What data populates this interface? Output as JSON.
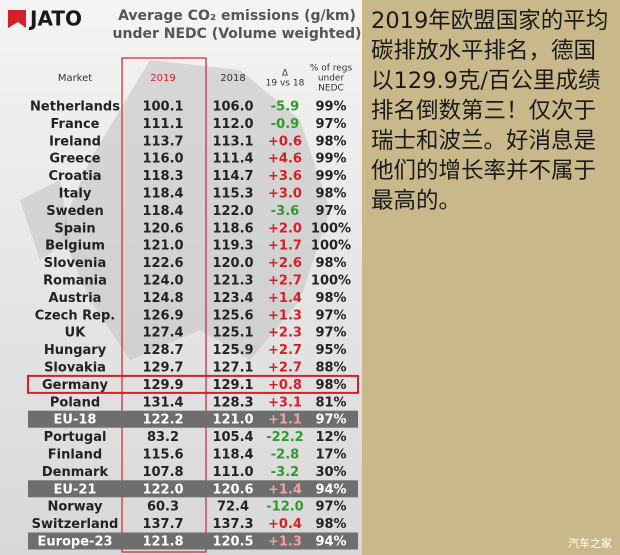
{
  "header": {
    "logo": "JATO",
    "title_lines": [
      "Average CO₂ emissions (g/km)",
      "under NEDC (Volume weighted)"
    ]
  },
  "table": {
    "columns": [
      [
        "Market"
      ],
      [
        "2019"
      ],
      [
        "2018"
      ],
      [
        "Δ",
        "19 vs 18"
      ],
      [
        "% of regs",
        "under",
        "NEDC"
      ]
    ],
    "rows": [
      [
        "Netherlands",
        "100.1",
        "106.0",
        "-5.9",
        "99%"
      ],
      [
        "France",
        "111.1",
        "112.0",
        "-0.9",
        "97%"
      ],
      [
        "Ireland",
        "113.7",
        "113.1",
        "+0.6",
        "98%"
      ],
      [
        "Greece",
        "116.0",
        "111.4",
        "+4.6",
        "99%"
      ],
      [
        "Croatia",
        "118.3",
        "114.7",
        "+3.6",
        "99%"
      ],
      [
        "Italy",
        "118.4",
        "115.3",
        "+3.0",
        "98%"
      ],
      [
        "Sweden",
        "118.4",
        "122.0",
        "-3.6",
        "97%"
      ],
      [
        "Spain",
        "120.6",
        "118.6",
        "+2.0",
        "100%"
      ],
      [
        "Belgium",
        "121.0",
        "119.3",
        "+1.7",
        "100%"
      ],
      [
        "Slovenia",
        "122.6",
        "120.0",
        "+2.6",
        "98%"
      ],
      [
        "Romania",
        "124.0",
        "121.3",
        "+2.7",
        "100%"
      ],
      [
        "Austria",
        "124.8",
        "123.4",
        "+1.4",
        "98%"
      ],
      [
        "Czech Rep.",
        "126.9",
        "125.6",
        "+1.3",
        "97%"
      ],
      [
        "UK",
        "127.4",
        "125.1",
        "+2.3",
        "97%"
      ],
      [
        "Hungary",
        "128.7",
        "125.9",
        "+2.7",
        "95%"
      ],
      [
        "Slovakia",
        "129.7",
        "127.1",
        "+2.7",
        "88%"
      ],
      [
        "Germany",
        "129.9",
        "129.1",
        "+0.8",
        "98%"
      ],
      [
        "Poland",
        "131.4",
        "128.3",
        "+3.1",
        "81%"
      ],
      [
        "EU-18",
        "122.2",
        "121.0",
        "+1.1",
        "97%"
      ],
      [
        "Portugal",
        "83.2",
        "105.4",
        "-22.2",
        "12%"
      ],
      [
        "Finland",
        "115.6",
        "118.4",
        "-2.8",
        "17%"
      ],
      [
        "Denmark",
        "107.8",
        "111.0",
        "-3.2",
        "30%"
      ],
      [
        "EU-21",
        "122.0",
        "120.6",
        "+1.4",
        "94%"
      ],
      [
        "Norway",
        "60.3",
        "72.4",
        "-12.0",
        "97%"
      ],
      [
        "Switzerland",
        "137.7",
        "137.3",
        "+0.4",
        "98%"
      ],
      [
        "Europe-23",
        "121.8",
        "120.5",
        "+1.3",
        "94%"
      ]
    ],
    "summary_rows": [
      18,
      22,
      25
    ],
    "highlight_row": 16
  },
  "caption": "2019年欧盟国家的平均碳排放水平排名，德国以129.9克/百公里成绩排名倒数第三！仅次于瑞士和波兰。好消息是他们的增长率并不属于最高的。",
  "watermark": "汽车之家"
}
